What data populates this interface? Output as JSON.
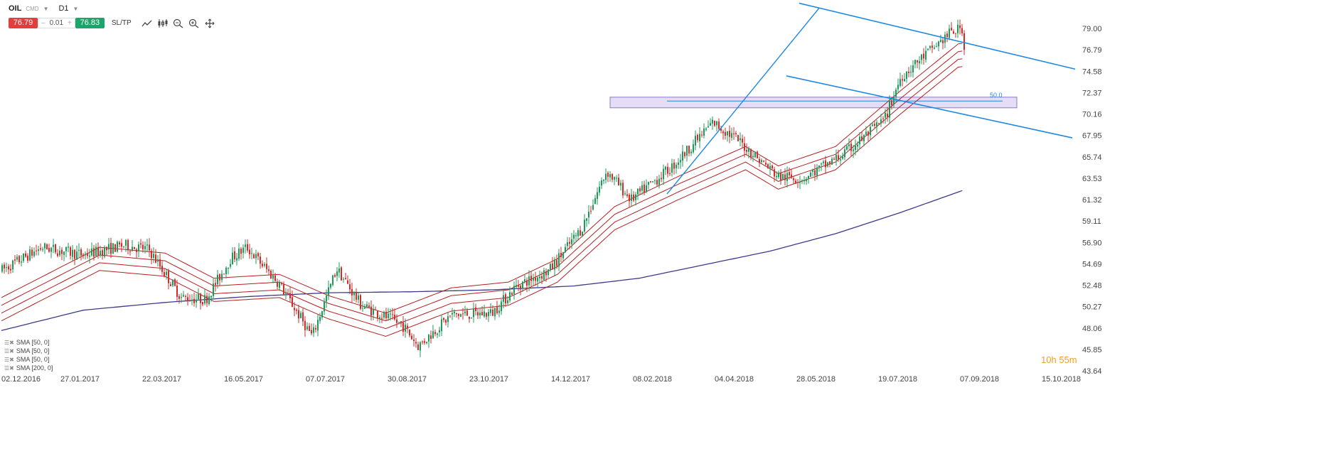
{
  "toolbar": {
    "symbol": "OIL",
    "market": "CMD",
    "timeframe": "D1",
    "sell_price": "76.79",
    "lot_minus": "–",
    "lot_value": "0.01",
    "lot_plus": "+",
    "buy_price": "76.83",
    "sltp_label": "SL/TP"
  },
  "countdown": {
    "hours": "10h",
    "minutes": "55m"
  },
  "indicators": [
    "SMA [50, 0]",
    "SMA [50, 0]",
    "SMA [50, 0]",
    "SMA [200, 0]"
  ],
  "colors": {
    "up_candle": "#1a9b5a",
    "down_candle": "#d32b2b",
    "envelope": "#b52020",
    "sma200": "#3a3a8c",
    "trendline": "#1e88e5",
    "zone_fill": "#e4ddf5",
    "zone_stroke": "#8c7ac9",
    "countdown": "#f0a020",
    "sell_badge": "#e33e3e",
    "buy_badge": "#1aa56b"
  },
  "chart_data": {
    "type": "candlestick",
    "symbol": "OIL",
    "timeframe": "D1",
    "y_ticks": [
      "79.00",
      "76.79",
      "74.58",
      "72.37",
      "70.16",
      "67.95",
      "65.74",
      "63.53",
      "61.32",
      "59.11",
      "56.90",
      "54.69",
      "52.48",
      "50.27",
      "48.06",
      "45.85",
      "43.64"
    ],
    "ylim": [
      43.64,
      79.0
    ],
    "x_ticks": [
      "02.12.2016",
      "27.01.2017",
      "22.03.2017",
      "16.05.2017",
      "07.07.2017",
      "30.08.2017",
      "23.10.2017",
      "14.12.2017",
      "08.02.2018",
      "04.04.2018",
      "28.05.2018",
      "19.07.2018",
      "07.09.2018",
      "15.10.2018"
    ],
    "last_price": 76.79,
    "fib_label": "50.0",
    "fib_level": 71.5,
    "zone": [
      70.8,
      71.9
    ],
    "trend_channel_upper": [
      [
        1,
        81.6
      ],
      [
        16,
        74.8
      ]
    ],
    "trend_channel_lower": [
      [
        1,
        74.1
      ],
      [
        16,
        67.7
      ]
    ],
    "rising_line": [
      [
        8.1,
        61.9
      ],
      [
        10.6,
        81.1
      ]
    ],
    "price_path": [
      [
        0,
        54.0
      ],
      [
        0.5,
        56.4
      ],
      [
        1,
        55.6
      ],
      [
        1.5,
        56.6
      ],
      [
        1.8,
        56.2
      ],
      [
        2.2,
        51.2
      ],
      [
        2.5,
        51.0
      ],
      [
        2.8,
        55.2
      ],
      [
        3.0,
        56.4
      ],
      [
        3.4,
        52.6
      ],
      [
        3.8,
        47.2
      ],
      [
        4.1,
        54.2
      ],
      [
        4.4,
        50.4
      ],
      [
        4.9,
        48.4
      ],
      [
        5.1,
        46.2
      ],
      [
        5.5,
        49.4
      ],
      [
        6.0,
        49.6
      ],
      [
        6.3,
        52.4
      ],
      [
        6.7,
        54.0
      ],
      [
        7.1,
        58.4
      ],
      [
        7.4,
        64.3
      ],
      [
        7.7,
        61.3
      ],
      [
        8.2,
        64.7
      ],
      [
        8.7,
        69.3
      ],
      [
        9.0,
        67.5
      ],
      [
        9.5,
        63.7
      ],
      [
        9.8,
        63.5
      ],
      [
        10.3,
        66.0
      ],
      [
        10.8,
        69.6
      ],
      [
        11.0,
        74.0
      ],
      [
        11.3,
        76.3
      ],
      [
        11.6,
        78.5
      ],
      [
        12.0,
        80.0
      ],
      [
        12.2,
        74.1
      ],
      [
        12.6,
        76.7
      ],
      [
        13.0,
        74.8
      ],
      [
        13.4,
        76.4
      ],
      [
        13.8,
        79.2
      ],
      [
        14.1,
        71.5
      ],
      [
        14.6,
        74.4
      ],
      [
        15.0,
        75.6
      ],
      [
        15.4,
        70.7
      ],
      [
        15.7,
        72.7
      ],
      [
        16.0,
        76.79
      ]
    ],
    "envelope_path": [
      [
        0,
        50.0
      ],
      [
        1.2,
        55.2
      ],
      [
        2.0,
        54.6
      ],
      [
        2.6,
        52.0
      ],
      [
        3.4,
        52.4
      ],
      [
        4.0,
        50.2
      ],
      [
        4.7,
        48.4
      ],
      [
        5.5,
        51.0
      ],
      [
        6.2,
        51.6
      ],
      [
        6.8,
        54.0
      ],
      [
        7.5,
        59.4
      ],
      [
        8.3,
        62.6
      ],
      [
        9.1,
        65.6
      ],
      [
        9.5,
        63.6
      ],
      [
        10.2,
        65.6
      ],
      [
        11.0,
        71.4
      ],
      [
        11.7,
        76.2
      ],
      [
        12.5,
        77.2
      ],
      [
        13.2,
        77.4
      ],
      [
        14.0,
        77.6
      ],
      [
        14.6,
        76.0
      ],
      [
        15.5,
        74.9
      ],
      [
        16.0,
        75.0
      ]
    ],
    "envelope_offsets": [
      1.2,
      0.4,
      -0.4,
      -1.2
    ],
    "sma200_path": [
      [
        0,
        47.8
      ],
      [
        1.0,
        49.9
      ],
      [
        2.0,
        50.7
      ],
      [
        3.0,
        51.3
      ],
      [
        4.0,
        51.7
      ],
      [
        5.0,
        51.8
      ],
      [
        6.0,
        52.0
      ],
      [
        7.0,
        52.4
      ],
      [
        7.8,
        53.2
      ],
      [
        8.6,
        54.6
      ],
      [
        9.4,
        56.0
      ],
      [
        10.2,
        57.8
      ],
      [
        11.0,
        60.0
      ],
      [
        11.8,
        62.4
      ],
      [
        12.6,
        64.9
      ],
      [
        13.4,
        67.1
      ],
      [
        14.2,
        68.6
      ],
      [
        15.0,
        69.6
      ],
      [
        15.5,
        70.3
      ],
      [
        16.0,
        70.6
      ]
    ]
  }
}
